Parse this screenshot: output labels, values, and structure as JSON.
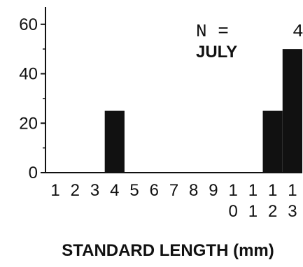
{
  "chart_data": {
    "type": "bar",
    "categories": [
      "1",
      "2",
      "3",
      "4",
      "5",
      "6",
      "7",
      "8",
      "9",
      "10",
      "11",
      "12",
      "13"
    ],
    "category_label_lines": [
      [
        "1"
      ],
      [
        "2"
      ],
      [
        "3"
      ],
      [
        "4"
      ],
      [
        "5"
      ],
      [
        "6"
      ],
      [
        "7"
      ],
      [
        "8"
      ],
      [
        "9"
      ],
      [
        "1",
        "0"
      ],
      [
        "1",
        "1"
      ],
      [
        "1",
        "2"
      ],
      [
        "1",
        "3"
      ]
    ],
    "values": [
      0,
      0,
      0,
      25,
      0,
      0,
      0,
      0,
      0,
      0,
      0,
      25,
      50
    ],
    "ylim": [
      0,
      67
    ],
    "yticks": [
      0,
      20,
      40,
      60
    ],
    "ytick_labels": [
      "0",
      "20",
      "40",
      "60"
    ],
    "xlabel": "STANDARD LENGTH (mm)",
    "ylabel": "",
    "annotations": {
      "n_label": "N =",
      "n_value": "4",
      "month": "JULY"
    },
    "grid": false,
    "bar_color": "#111111"
  }
}
